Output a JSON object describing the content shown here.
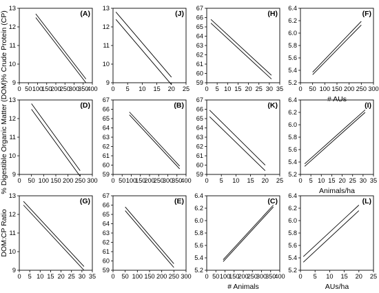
{
  "chart_data": [
    {
      "id": "A",
      "type": "line",
      "panel_label": "(A)",
      "row_ylabel": "% Crude Protein (CP)",
      "xlabel": "",
      "xlim": [
        0,
        400
      ],
      "xticks": [
        0,
        50,
        100,
        150,
        200,
        250,
        300,
        350,
        400
      ],
      "xticklabels": [
        "0",
        "50",
        "100",
        "150",
        "200",
        "250",
        "300",
        "350",
        "400"
      ],
      "ylim": [
        9,
        13
      ],
      "yticks": [
        9,
        10,
        11,
        12,
        13
      ],
      "yticklabels": [
        "9",
        "10",
        "11",
        "12",
        "13"
      ],
      "series": [
        {
          "x": [
            90,
            365
          ],
          "values": [
            12.7,
            9.2
          ]
        },
        {
          "x": [
            90,
            365
          ],
          "values": [
            12.5,
            9.0
          ]
        }
      ]
    },
    {
      "id": "D",
      "type": "line",
      "panel_label": "(D)",
      "row_ylabel": "",
      "xlabel": "",
      "xlim": [
        0,
        300
      ],
      "xticks": [
        0,
        50,
        100,
        150,
        200,
        250,
        300
      ],
      "xticklabels": [
        "0",
        "50",
        "100",
        "150",
        "200",
        "250",
        "300"
      ],
      "ylim": [
        9,
        13
      ],
      "yticks": [
        9,
        10,
        11,
        12,
        13
      ],
      "yticklabels": [
        "9",
        "10",
        "11",
        "12",
        "13"
      ],
      "series": [
        {
          "x": [
            50,
            250
          ],
          "values": [
            12.8,
            9.2
          ]
        },
        {
          "x": [
            50,
            250
          ],
          "values": [
            12.5,
            8.9
          ]
        }
      ]
    },
    {
      "id": "G",
      "type": "line",
      "panel_label": "(G)",
      "row_ylabel": "",
      "xlabel": "",
      "xlim": [
        0,
        35
      ],
      "xticks": [
        0,
        5,
        10,
        15,
        20,
        25,
        30,
        35
      ],
      "xticklabels": [
        "0",
        "5",
        "10",
        "15",
        "20",
        "25",
        "30",
        "35"
      ],
      "ylim": [
        9,
        13
      ],
      "yticks": [
        9,
        10,
        11,
        12,
        13
      ],
      "yticklabels": [
        "9",
        "10",
        "11",
        "12",
        "13"
      ],
      "series": [
        {
          "x": [
            2,
            31
          ],
          "values": [
            12.7,
            9.2
          ]
        },
        {
          "x": [
            2,
            31
          ],
          "values": [
            12.5,
            9.0
          ]
        }
      ]
    },
    {
      "id": "J",
      "type": "line",
      "panel_label": "(J)",
      "row_ylabel": "",
      "xlabel": "",
      "xlim": [
        0,
        25
      ],
      "xticks": [
        0,
        5,
        10,
        15,
        20,
        25
      ],
      "xticklabels": [
        "0",
        "5",
        "10",
        "15",
        "20",
        "25"
      ],
      "ylim": [
        9,
        13
      ],
      "yticks": [
        9,
        10,
        11,
        12,
        13
      ],
      "yticklabels": [
        "9",
        "10",
        "11",
        "12",
        "13"
      ],
      "series": [
        {
          "x": [
            1,
            20
          ],
          "values": [
            12.8,
            9.3
          ]
        },
        {
          "x": [
            1,
            20
          ],
          "values": [
            12.4,
            8.9
          ]
        }
      ]
    },
    {
      "id": "B",
      "type": "line",
      "panel_label": "(B)",
      "row_ylabel": "% Digestible Organic Matter (DOM)",
      "xlabel": "",
      "xlim": [
        0,
        400
      ],
      "xticks": [
        0,
        50,
        100,
        150,
        200,
        250,
        300,
        350,
        400
      ],
      "xticklabels": [
        "0",
        "50",
        "100",
        "150",
        "200",
        "250",
        "300",
        "350",
        "400"
      ],
      "ylim": [
        59,
        67
      ],
      "yticks": [
        59,
        60,
        61,
        62,
        63,
        64,
        65,
        66,
        67
      ],
      "yticklabels": [
        "59",
        "60",
        "61",
        "62",
        "63",
        "64",
        "65",
        "66",
        "67"
      ],
      "series": [
        {
          "x": [
            90,
            365
          ],
          "values": [
            65.7,
            59.9
          ]
        },
        {
          "x": [
            90,
            365
          ],
          "values": [
            65.4,
            59.6
          ]
        }
      ]
    },
    {
      "id": "E",
      "type": "line",
      "panel_label": "(E)",
      "row_ylabel": "",
      "xlabel": "",
      "xlim": [
        0,
        300
      ],
      "xticks": [
        0,
        50,
        100,
        150,
        200,
        250,
        300
      ],
      "xticklabels": [
        "0",
        "50",
        "100",
        "150",
        "200",
        "250",
        "300"
      ],
      "ylim": [
        59,
        67
      ],
      "yticks": [
        59,
        60,
        61,
        62,
        63,
        64,
        65,
        66,
        67
      ],
      "yticklabels": [
        "59",
        "60",
        "61",
        "62",
        "63",
        "64",
        "65",
        "66",
        "67"
      ],
      "series": [
        {
          "x": [
            50,
            250
          ],
          "values": [
            65.8,
            59.7
          ]
        },
        {
          "x": [
            50,
            250
          ],
          "values": [
            65.4,
            59.3
          ]
        }
      ]
    },
    {
      "id": "H",
      "type": "line",
      "panel_label": "(H)",
      "row_ylabel": "",
      "xlabel": "",
      "xlim": [
        0,
        35
      ],
      "xticks": [
        0,
        5,
        10,
        15,
        20,
        25,
        30,
        35
      ],
      "xticklabels": [
        "0",
        "5",
        "10",
        "15",
        "20",
        "25",
        "30",
        "35"
      ],
      "ylim": [
        59,
        67
      ],
      "yticks": [
        59,
        60,
        61,
        62,
        63,
        64,
        65,
        66,
        67
      ],
      "yticklabels": [
        "59",
        "60",
        "61",
        "62",
        "63",
        "64",
        "65",
        "66",
        "67"
      ],
      "series": [
        {
          "x": [
            2,
            31
          ],
          "values": [
            65.8,
            59.8
          ]
        },
        {
          "x": [
            2,
            31
          ],
          "values": [
            65.4,
            59.4
          ]
        }
      ]
    },
    {
      "id": "K",
      "type": "line",
      "panel_label": "(K)",
      "row_ylabel": "",
      "xlabel": "",
      "xlim": [
        0,
        25
      ],
      "xticks": [
        0,
        5,
        10,
        15,
        20,
        25
      ],
      "xticklabels": [
        "0",
        "5",
        "10",
        "15",
        "20",
        "25"
      ],
      "ylim": [
        59,
        67
      ],
      "yticks": [
        59,
        60,
        61,
        62,
        63,
        64,
        65,
        66,
        67
      ],
      "yticklabels": [
        "59",
        "60",
        "61",
        "62",
        "63",
        "64",
        "65",
        "66",
        "67"
      ],
      "series": [
        {
          "x": [
            1,
            20
          ],
          "values": [
            65.9,
            60.0
          ]
        },
        {
          "x": [
            1,
            20
          ],
          "values": [
            65.2,
            59.4
          ]
        }
      ]
    },
    {
      "id": "C",
      "type": "line",
      "panel_label": "(C)",
      "row_ylabel": "DOM:CP Ratio",
      "xlabel": "# Animals",
      "xlim": [
        0,
        400
      ],
      "xticks": [
        0,
        50,
        100,
        150,
        200,
        250,
        300,
        350,
        400
      ],
      "xticklabels": [
        "0",
        "50",
        "100",
        "150",
        "200",
        "250",
        "300",
        "350",
        "400"
      ],
      "ylim": [
        5.2,
        6.4
      ],
      "yticks": [
        5.2,
        5.4,
        5.6,
        5.8,
        6.0,
        6.2,
        6.4
      ],
      "yticklabels": [
        "5.2",
        "5.4",
        "5.6",
        "5.8",
        "6.0",
        "6.2",
        "6.4"
      ],
      "series": [
        {
          "x": [
            90,
            365
          ],
          "values": [
            5.37,
            6.25
          ]
        },
        {
          "x": [
            90,
            365
          ],
          "values": [
            5.34,
            6.22
          ]
        }
      ]
    },
    {
      "id": "F",
      "type": "line",
      "panel_label": "(F)",
      "row_ylabel": "",
      "xlabel": "# AUs",
      "xlim": [
        0,
        300
      ],
      "xticks": [
        0,
        50,
        100,
        150,
        200,
        250,
        300
      ],
      "xticklabels": [
        "0",
        "50",
        "100",
        "150",
        "200",
        "250",
        "300"
      ],
      "ylim": [
        5.2,
        6.4
      ],
      "yticks": [
        5.2,
        5.4,
        5.6,
        5.8,
        6.0,
        6.2,
        6.4
      ],
      "yticklabels": [
        "5.2",
        "5.4",
        "5.6",
        "5.8",
        "6.0",
        "6.2",
        "6.4"
      ],
      "series": [
        {
          "x": [
            50,
            250
          ],
          "values": [
            5.37,
            6.19
          ]
        },
        {
          "x": [
            50,
            250
          ],
          "values": [
            5.33,
            6.13
          ]
        }
      ]
    },
    {
      "id": "I",
      "type": "line",
      "panel_label": "(I)",
      "row_ylabel": "",
      "xlabel": "Animals/ha",
      "xlim": [
        0,
        35
      ],
      "xticks": [
        0,
        5,
        10,
        15,
        20,
        25,
        30,
        35
      ],
      "xticklabels": [
        "0",
        "5",
        "10",
        "15",
        "20",
        "25",
        "30",
        "35"
      ],
      "ylim": [
        5.2,
        6.4
      ],
      "yticks": [
        5.2,
        5.4,
        5.6,
        5.8,
        6.0,
        6.2,
        6.4
      ],
      "yticklabels": [
        "5.2",
        "5.4",
        "5.6",
        "5.8",
        "6.0",
        "6.2",
        "6.4"
      ],
      "series": [
        {
          "x": [
            2,
            31
          ],
          "values": [
            5.37,
            6.24
          ]
        },
        {
          "x": [
            2,
            31
          ],
          "values": [
            5.33,
            6.2
          ]
        }
      ]
    },
    {
      "id": "L",
      "type": "line",
      "panel_label": "(L)",
      "row_ylabel": "",
      "xlabel": "AUs/ha",
      "xlim": [
        0,
        25
      ],
      "xticks": [
        0,
        5,
        10,
        15,
        20,
        25
      ],
      "xticklabels": [
        "0",
        "5",
        "10",
        "15",
        "20",
        "25"
      ],
      "ylim": [
        5.2,
        6.4
      ],
      "yticks": [
        5.2,
        5.4,
        5.6,
        5.8,
        6.0,
        6.2,
        6.4
      ],
      "yticklabels": [
        "5.2",
        "5.4",
        "5.6",
        "5.8",
        "6.0",
        "6.2",
        "6.4"
      ],
      "series": [
        {
          "x": [
            1,
            20
          ],
          "values": [
            5.42,
            6.25
          ]
        },
        {
          "x": [
            1,
            20
          ],
          "values": [
            5.33,
            6.16
          ]
        }
      ]
    }
  ]
}
